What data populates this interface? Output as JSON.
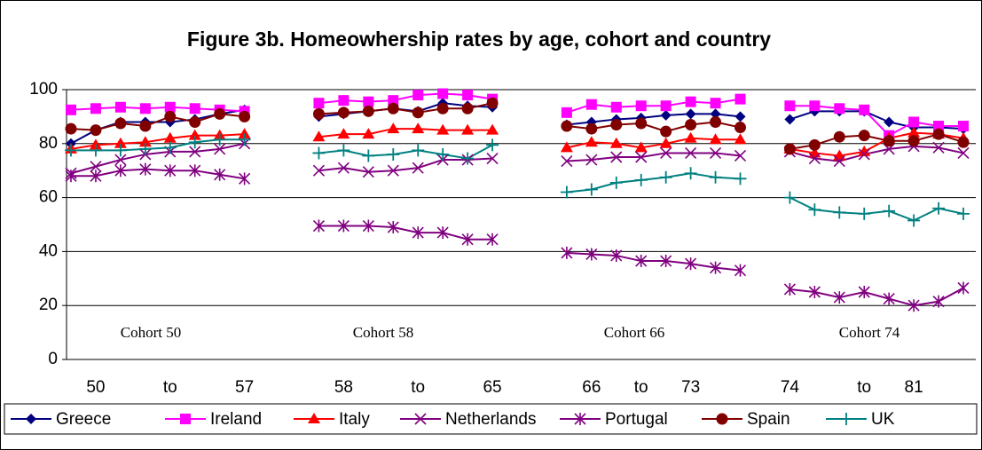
{
  "chart_data": {
    "type": "line",
    "title": "Figure 3b. Homeowhership rates by age, cohort and country",
    "annotations": [
      "Cohort 50",
      "Cohort 58",
      "Cohort 66",
      "Cohort 74"
    ],
    "categories": [
      null,
      "50",
      null,
      null,
      "to",
      null,
      null,
      "57",
      null,
      null,
      null,
      "58",
      null,
      null,
      "to",
      null,
      null,
      "65",
      null,
      null,
      null,
      "66",
      null,
      "to",
      null,
      "73",
      null,
      null,
      null,
      "74",
      null,
      null,
      "to",
      null,
      "81",
      null,
      null
    ],
    "ylim": [
      0,
      100
    ],
    "yticks": [
      0,
      20,
      40,
      60,
      80,
      100
    ],
    "grid": true,
    "legend": "bottom",
    "series": [
      {
        "name": "Greece",
        "color": "#000080",
        "marker": "diamond",
        "values": [
          80,
          85,
          88,
          88,
          88,
          89,
          91,
          92.5,
          null,
          null,
          90,
          91,
          92,
          93,
          92,
          95,
          94,
          93.5,
          null,
          null,
          87,
          88,
          89,
          89.5,
          90.5,
          91,
          91,
          90,
          null,
          89,
          92,
          92,
          92,
          88,
          86,
          86,
          85.5
        ]
      },
      {
        "name": "Ireland",
        "color": "#ff00ff",
        "marker": "square",
        "values": [
          92.5,
          93,
          93.5,
          93,
          93.5,
          93,
          92.5,
          92,
          null,
          null,
          95,
          96,
          95.5,
          96,
          98,
          98.5,
          98,
          96.5,
          null,
          null,
          91.5,
          94.5,
          93.5,
          94,
          94,
          95.5,
          95,
          96.5,
          null,
          94,
          94,
          93,
          92.5,
          83,
          88,
          86.5,
          86.5
        ]
      },
      {
        "name": "Italy",
        "color": "#ff0000",
        "marker": "triangle",
        "values": [
          78,
          79.5,
          80,
          80.5,
          82,
          83,
          83,
          83.5,
          null,
          null,
          82.5,
          83.5,
          83.5,
          85.5,
          85.5,
          85,
          85,
          85,
          null,
          null,
          78.5,
          80.5,
          80,
          78.5,
          80,
          82,
          81.5,
          81.5,
          null,
          78,
          76.5,
          75.5,
          77,
          82,
          84,
          83.5,
          82
        ]
      },
      {
        "name": "Netherlands",
        "color": "#800080",
        "marker": "x",
        "values": [
          69,
          71.5,
          74,
          76,
          77,
          77,
          78,
          80,
          null,
          null,
          70,
          71,
          69.5,
          70,
          71,
          74,
          74,
          74.5,
          null,
          null,
          73.5,
          74,
          75,
          75,
          76.5,
          76.5,
          76.5,
          75.5,
          null,
          77,
          74.5,
          73.5,
          76,
          78,
          79,
          78.5,
          76.5
        ]
      },
      {
        "name": "Portugal",
        "color": "#800080",
        "marker": "star",
        "values": [
          68,
          68,
          70,
          70.5,
          70,
          70,
          68.5,
          67,
          null,
          null,
          49.5,
          49.5,
          49.5,
          49,
          47,
          47,
          44.5,
          44.5,
          null,
          null,
          39.5,
          39,
          38.5,
          36.5,
          36.5,
          35.5,
          34,
          33,
          null,
          26,
          25,
          23,
          25,
          22.5,
          20,
          21.5,
          26.5
        ]
      },
      {
        "name": "Spain",
        "color": "#800000",
        "marker": "circle",
        "values": [
          85.5,
          85,
          87.5,
          86.5,
          90,
          88,
          91,
          90,
          null,
          null,
          91,
          91.5,
          92,
          93,
          91.5,
          93,
          93,
          95,
          null,
          null,
          86.5,
          85.5,
          87,
          87.5,
          84.5,
          87,
          88,
          86,
          null,
          78,
          79.5,
          82.5,
          83,
          81,
          81,
          83.5,
          80.5
        ]
      },
      {
        "name": "UK",
        "color": "#008080",
        "marker": "plus",
        "values": [
          77.5,
          77.5,
          77.5,
          78,
          78.5,
          80.5,
          81.5,
          81.5,
          null,
          null,
          76.5,
          77.5,
          75.5,
          76,
          77.5,
          76,
          74.5,
          79.5,
          null,
          null,
          62,
          63,
          65.5,
          66.5,
          67.5,
          69,
          67.5,
          67,
          null,
          60,
          55.5,
          54.5,
          54,
          55,
          51.5,
          56,
          54
        ]
      }
    ]
  }
}
